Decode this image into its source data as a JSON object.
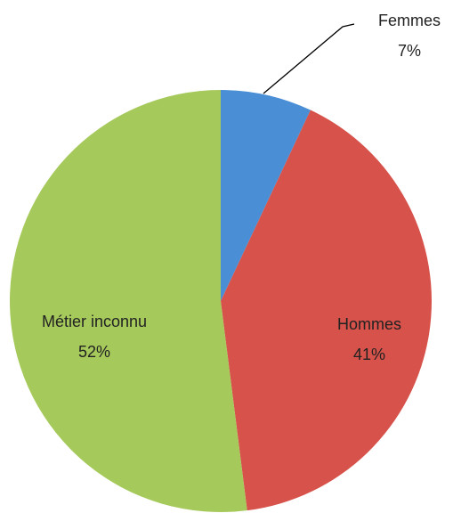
{
  "chart_data": {
    "type": "pie",
    "categories": [
      "Femmes",
      "Hommes",
      "Métier inconnu"
    ],
    "values": [
      7,
      41,
      52
    ],
    "value_labels": [
      "7%",
      "41%",
      "52%"
    ],
    "colors": [
      "#4a8fd6",
      "#d6524a",
      "#a6c95c"
    ]
  }
}
